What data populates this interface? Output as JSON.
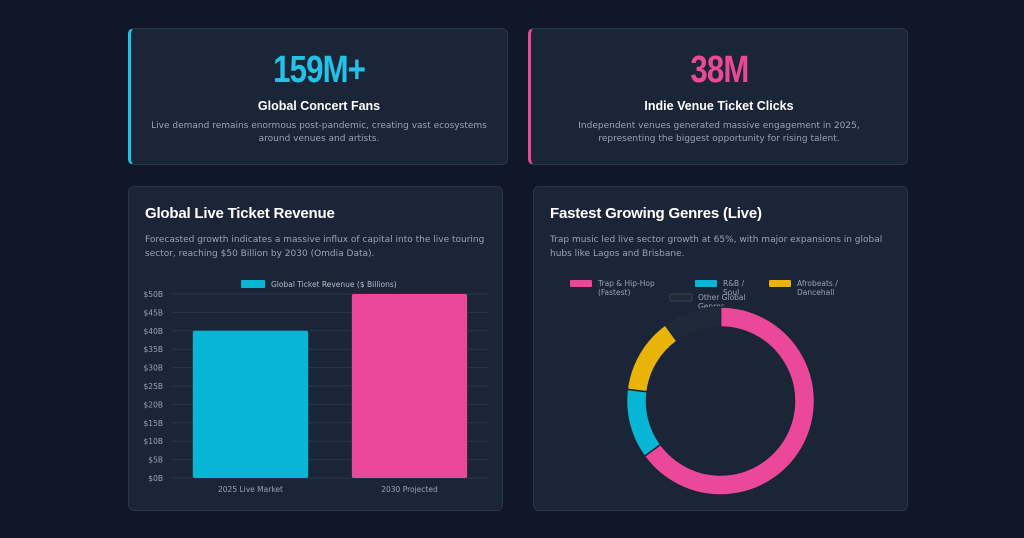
{
  "stats": [
    {
      "value": "159M+",
      "label": "Global Concert Fans",
      "desc": "Live demand remains enormous post-pandemic, creating vast ecosystems around venues and artists.",
      "color": "#22c3e6"
    },
    {
      "value": "38M",
      "label": "Indie Venue Ticket Clicks",
      "desc": "Independent venues generated massive engagement in 2025, representing the biggest opportunity for rising talent.",
      "color": "#ec4899"
    }
  ],
  "revenue_panel": {
    "title": "Global Live Ticket Revenue",
    "desc": "Forecasted growth indicates a massive influx of capital into the live touring sector, reaching $50 Billion by 2030 (Omdia Data)."
  },
  "genre_panel": {
    "title": "Fastest Growing Genres (Live)",
    "desc": "Trap music led live sector growth at 65%, with major expansions in global hubs like Lagos and Brisbane."
  },
  "chart_data": [
    {
      "type": "bar",
      "categories": [
        "2025 Live Market",
        "2030 Projected"
      ],
      "series": [
        {
          "name": "Global Ticket Revenue ($ Billions)",
          "values": [
            40,
            50
          ]
        }
      ],
      "colors": [
        "#06b6d4",
        "#ec4899"
      ],
      "ylim": [
        0,
        50
      ],
      "yticks": [
        "$0B",
        "$5B",
        "$10B",
        "$15B",
        "$20B",
        "$25B",
        "$30B",
        "$35B",
        "$40B",
        "$45B",
        "$50B"
      ],
      "grid": true,
      "legend": "top"
    },
    {
      "type": "pie",
      "donut": true,
      "categories": [
        "Trap & Hip-Hop (Fastest)",
        "R&B / Soul",
        "Afrobeats / Dancehall",
        "Other Global Genres"
      ],
      "values": [
        65,
        12,
        13,
        10
      ],
      "colors": [
        "#ec4899",
        "#06b6d4",
        "#eab308",
        "#1f2937"
      ],
      "legend": "top"
    }
  ]
}
